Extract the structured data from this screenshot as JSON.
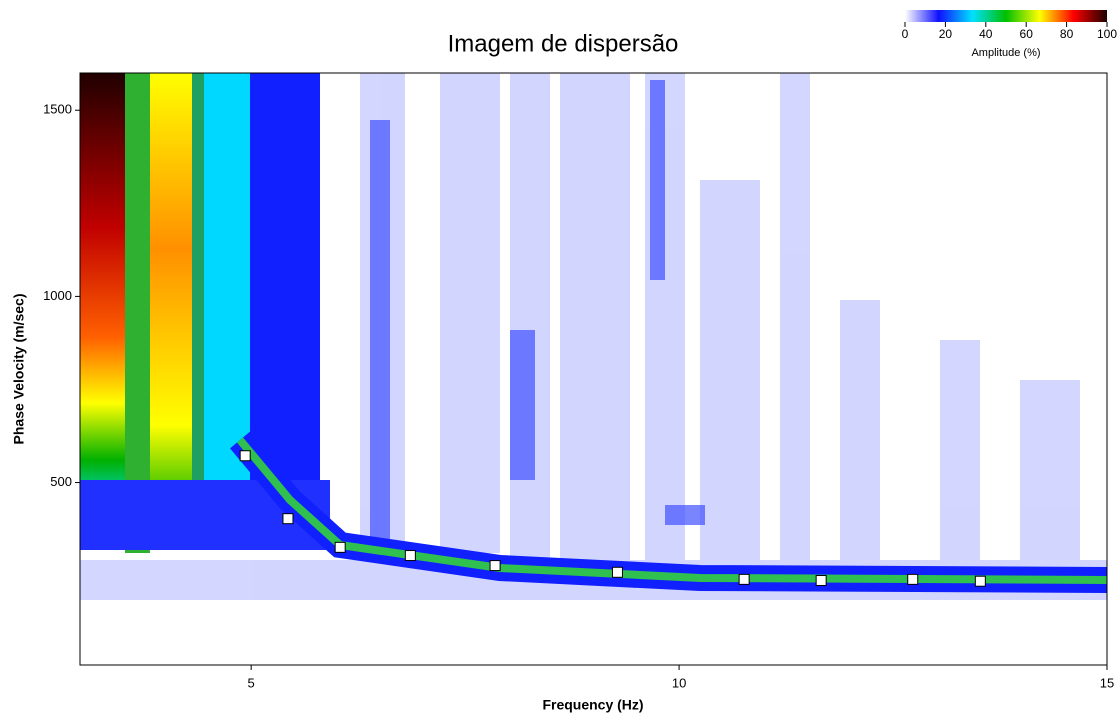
{
  "chart_data": {
    "type": "scatter",
    "title": "Imagem de dispersão",
    "xlabel": "Frequency (Hz)",
    "ylabel": "Phase Velocity (m/sec)",
    "x": [
      4.93,
      5.43,
      6.04,
      6.86,
      7.85,
      9.28,
      10.76,
      11.66,
      12.73,
      13.52
    ],
    "values": [
      572,
      403,
      326,
      304,
      277,
      259,
      240,
      237,
      240,
      235
    ],
    "color": "#ffffff",
    "xlim": [
      3,
      15
    ],
    "ylim": [
      10,
      1600
    ],
    "xticks": [
      5,
      10,
      15
    ],
    "yticks": [
      500,
      1000,
      1500
    ],
    "colorbar": {
      "label": "Amplitude (%)",
      "ticks": [
        0,
        20,
        40,
        60,
        80,
        100
      ],
      "colors": [
        "#ffffff",
        "#1010ff",
        "#00e0ff",
        "#00c000",
        "#ffff00",
        "#ff0000",
        "#200000"
      ]
    }
  }
}
